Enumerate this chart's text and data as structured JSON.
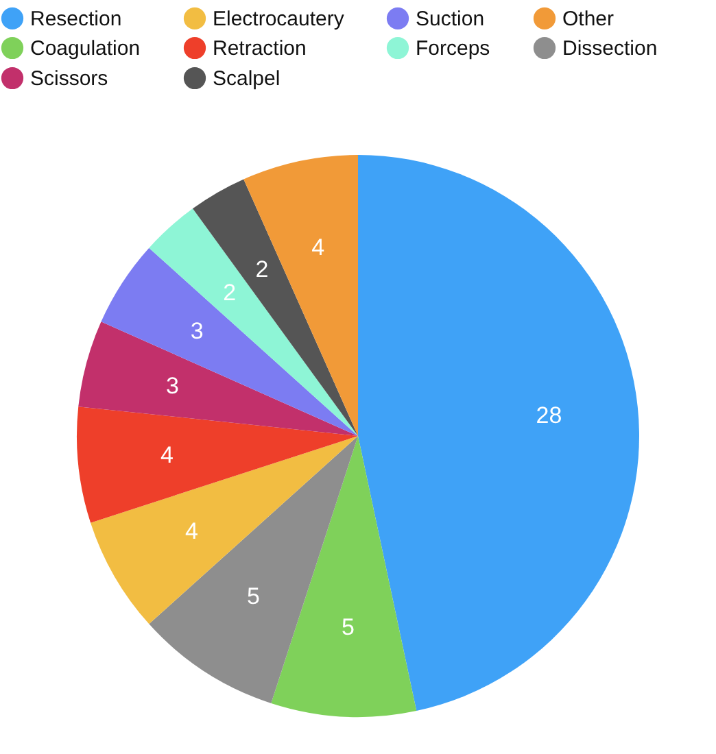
{
  "chart_data": {
    "type": "pie",
    "categories": [
      "Resection",
      "Coagulation",
      "Dissection",
      "Electrocautery",
      "Retraction",
      "Scissors",
      "Suction",
      "Forceps",
      "Scalpel",
      "Other"
    ],
    "values": [
      28,
      5,
      5,
      4,
      4,
      3,
      3,
      2,
      2,
      4
    ],
    "colors": [
      "#3fa2f7",
      "#7fd15a",
      "#8e8e8e",
      "#f2bd42",
      "#ee3f2a",
      "#c2306b",
      "#7c7cf2",
      "#8ef5d6",
      "#555555",
      "#f19a38"
    ],
    "data_labels": true,
    "legend": "top"
  }
}
